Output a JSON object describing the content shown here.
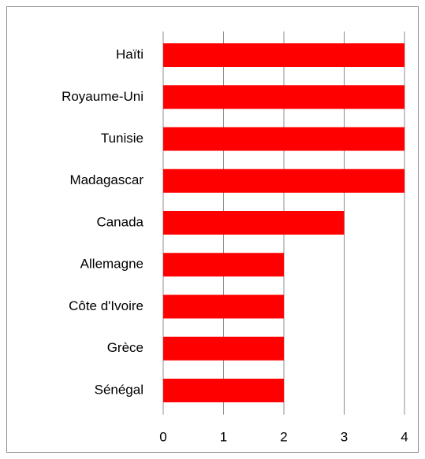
{
  "chart_data": {
    "type": "hbar",
    "categories": [
      "Haïti",
      "Royaume-Uni",
      "Tunisie",
      "Madagascar",
      "Canada",
      "Allemagne",
      "Côte d'Ivoire",
      "Grèce",
      "Sénégal"
    ],
    "values": [
      4,
      4,
      4,
      4,
      3,
      2,
      2,
      2,
      2
    ],
    "color": "#ff0000",
    "xlim": [
      0,
      4
    ],
    "xticks": [
      0,
      1,
      2,
      3,
      4
    ],
    "grid": true
  }
}
